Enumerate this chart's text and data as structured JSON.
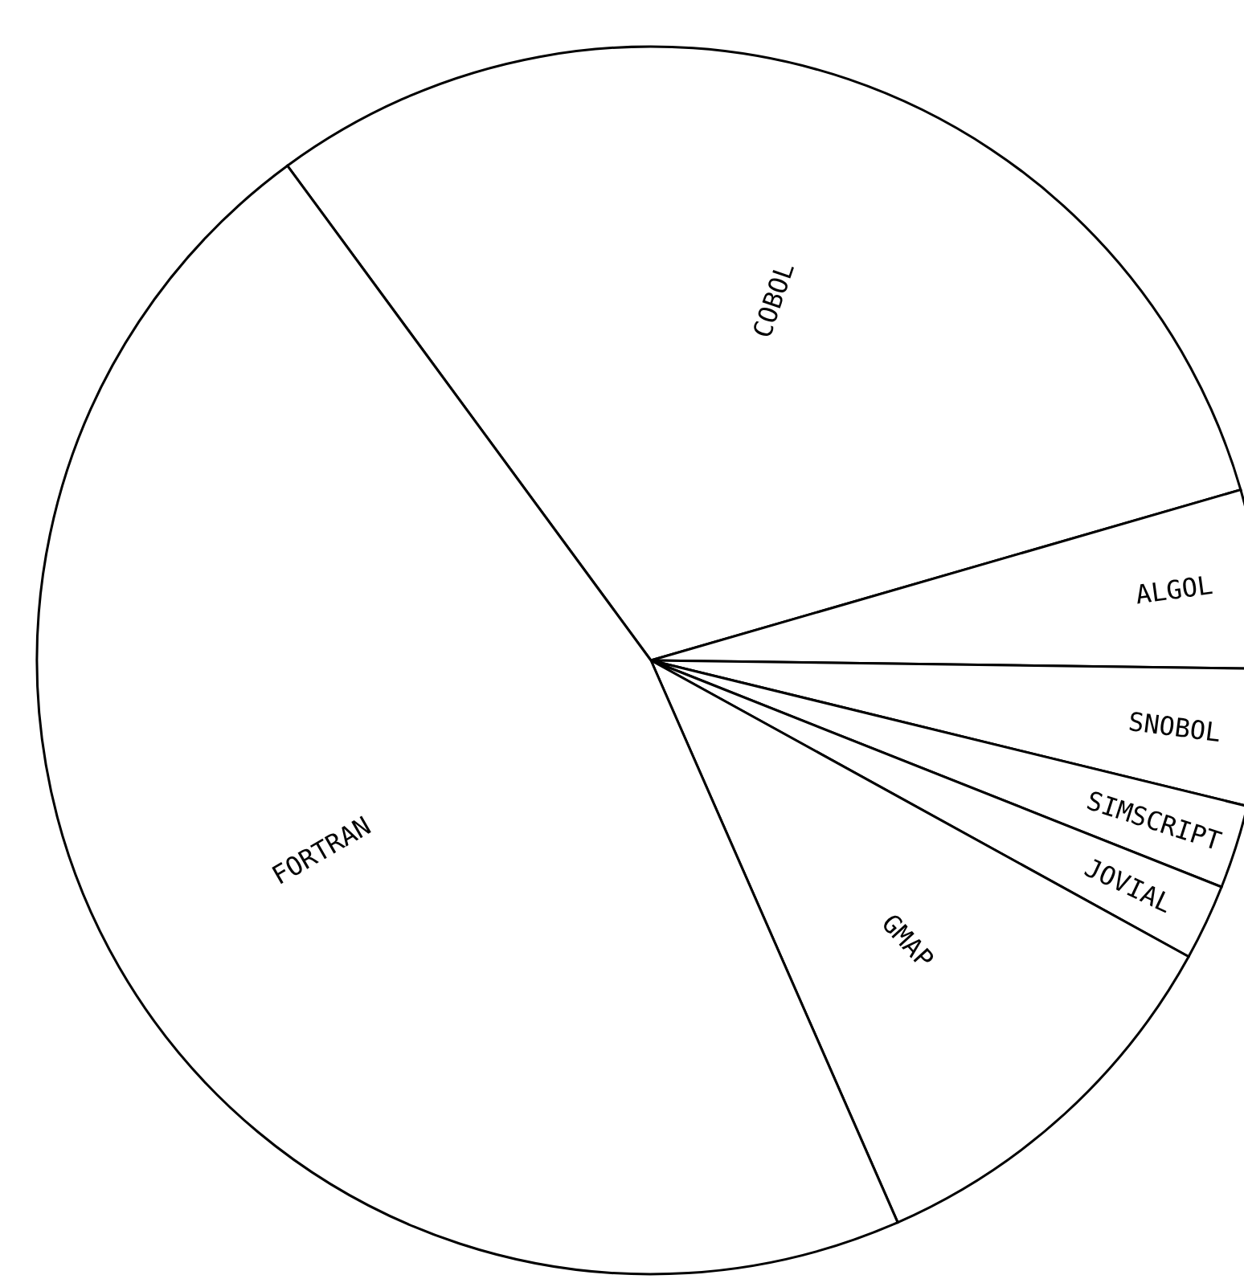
{
  "chart_data": {
    "type": "pie",
    "categories": [
      "COBOL",
      "ALGOL",
      "SNOBOL",
      "SIMSCRIPT",
      "JOVIAL",
      "GMAP",
      "FORTRAN"
    ],
    "values": [
      30.6,
      4.7,
      3.6,
      2.2,
      2.0,
      10.4,
      46.5
    ],
    "colors": [
      "#ffffff",
      "#ffffff",
      "#ffffff",
      "#ffffff",
      "#ffffff",
      "#ffffff",
      "#ffffff"
    ]
  }
}
